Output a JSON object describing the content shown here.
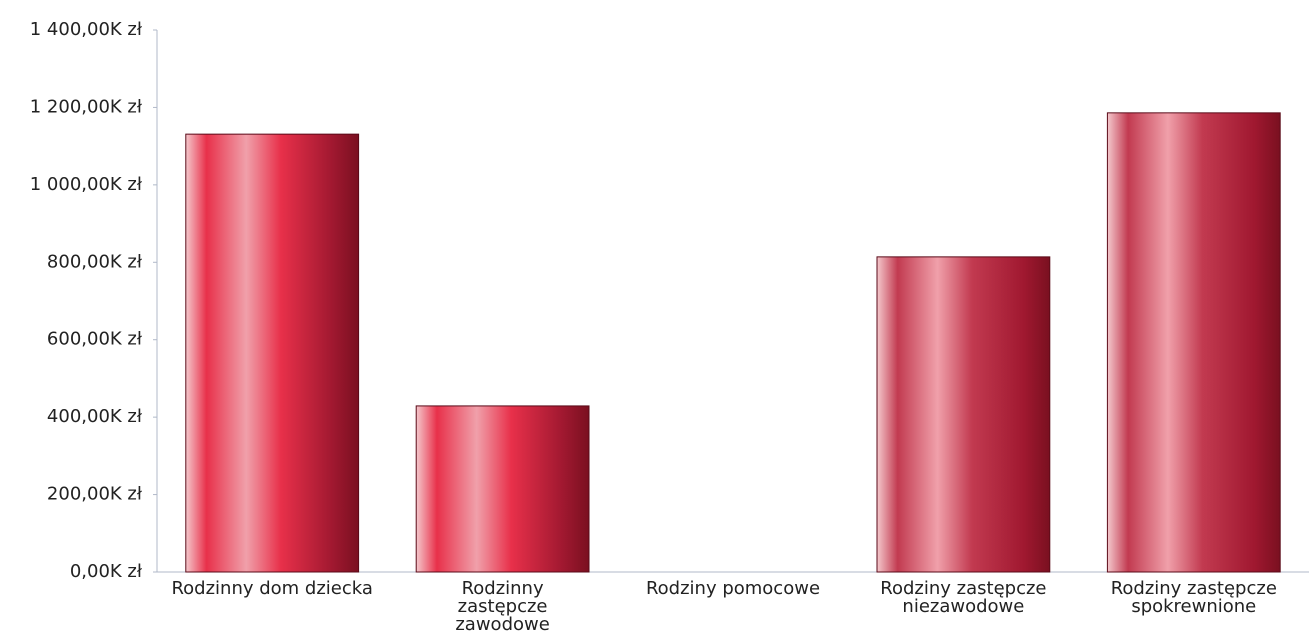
{
  "chart_data": {
    "type": "bar",
    "categories": [
      "Rodzinny dom dziecka",
      "Rodzinny zastępcze zawodowe",
      "Rodziny pomocowe",
      "Rodziny zastępcze niezawodowe",
      "Rodziny zastępcze spokrewnione"
    ],
    "values": [
      1131,
      429,
      0,
      814,
      1186
    ],
    "colors": [
      "#e8304a",
      "#e8304a",
      "#e8304a",
      "#c23a50",
      "#c23a50"
    ],
    "ylim": [
      0,
      1400
    ],
    "yticks": [
      {
        "value": 0,
        "label": "0,00K zł"
      },
      {
        "value": 200,
        "label": "200,00K zł"
      },
      {
        "value": 400,
        "label": "400,00K zł"
      },
      {
        "value": 600,
        "label": "600,00K zł"
      },
      {
        "value": 800,
        "label": "800,00K zł"
      },
      {
        "value": 1000,
        "label": "1 000,00K zł"
      },
      {
        "value": 1200,
        "label": "1 200,00K zł"
      },
      {
        "value": 1400,
        "label": "1 400,00K zł"
      }
    ]
  }
}
